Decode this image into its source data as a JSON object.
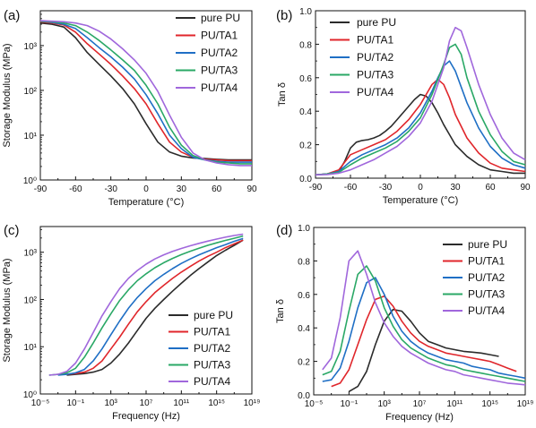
{
  "colors": {
    "pure PU": "#2b2b2b",
    "PU/TA1": "#e0262b",
    "PU/TA2": "#1f6fc5",
    "PU/TA3": "#2aa866",
    "PU/TA4": "#a067dc"
  },
  "chart_data": [
    {
      "panel_label": "(a)",
      "type": "line",
      "xlabel": "Temperature (°C)",
      "ylabel": "Storage Modulus (MPa)",
      "xlim": [
        -90,
        90
      ],
      "ylim": [
        1,
        6000
      ],
      "yscale": "log",
      "xticks": [
        -90,
        -60,
        -30,
        0,
        30,
        60,
        90
      ],
      "yticks": [
        1,
        10,
        100,
        1000
      ],
      "xtick_labels": [
        "-90",
        "-60",
        "-30",
        "0",
        "30",
        "60",
        "90"
      ],
      "ytick_labels": [
        "10⁰",
        "10¹",
        "10²",
        "10³"
      ],
      "legend": "top-right",
      "series": [
        {
          "name": "pure PU",
          "x": [
            -90,
            -80,
            -70,
            -60,
            -50,
            -40,
            -30,
            -20,
            -10,
            0,
            10,
            20,
            30,
            40,
            50,
            60,
            70,
            80,
            90
          ],
          "y": [
            3200,
            3000,
            2600,
            1500,
            700,
            380,
            210,
            110,
            50,
            18,
            7,
            4.2,
            3.4,
            3.1,
            3.0,
            2.9,
            2.8,
            2.8,
            2.8
          ]
        },
        {
          "name": "PU/TA1",
          "x": [
            -90,
            -80,
            -70,
            -60,
            -50,
            -40,
            -30,
            -20,
            -10,
            0,
            10,
            20,
            30,
            40,
            50,
            60,
            70,
            80,
            90
          ],
          "y": [
            3400,
            3200,
            2900,
            2000,
            1100,
            650,
            380,
            210,
            110,
            50,
            18,
            7,
            4.2,
            3.2,
            2.9,
            2.8,
            2.7,
            2.7,
            2.7
          ]
        },
        {
          "name": "PU/TA2",
          "x": [
            -90,
            -80,
            -70,
            -60,
            -50,
            -40,
            -30,
            -20,
            -10,
            0,
            10,
            20,
            30,
            40,
            50,
            60,
            70,
            80,
            90
          ],
          "y": [
            3500,
            3300,
            3000,
            2400,
            1500,
            900,
            560,
            330,
            180,
            80,
            30,
            10,
            5,
            3.2,
            2.8,
            2.6,
            2.5,
            2.5,
            2.5
          ]
        },
        {
          "name": "PU/TA3",
          "x": [
            -90,
            -80,
            -70,
            -60,
            -50,
            -40,
            -30,
            -20,
            -10,
            0,
            10,
            20,
            30,
            40,
            50,
            60,
            70,
            80,
            90
          ],
          "y": [
            3500,
            3400,
            3200,
            2800,
            2000,
            1300,
            800,
            480,
            280,
            130,
            50,
            15,
            6,
            3.5,
            2.8,
            2.5,
            2.4,
            2.3,
            2.3
          ]
        },
        {
          "name": "PU/TA4",
          "x": [
            -90,
            -80,
            -70,
            -60,
            -50,
            -40,
            -30,
            -20,
            -10,
            0,
            10,
            20,
            30,
            40,
            50,
            60,
            70,
            80,
            90
          ],
          "y": [
            3600,
            3500,
            3400,
            3200,
            2800,
            2100,
            1400,
            850,
            480,
            240,
            95,
            28,
            9,
            4,
            2.8,
            2.4,
            2.2,
            2.1,
            2.1
          ]
        }
      ]
    },
    {
      "panel_label": "(b)",
      "type": "line",
      "xlabel": "Temperature (°C)",
      "ylabel": "Tan δ",
      "xlim": [
        -90,
        90
      ],
      "ylim": [
        0,
        1.0
      ],
      "yscale": "linear",
      "xticks": [
        -90,
        -60,
        -30,
        0,
        30,
        60,
        90
      ],
      "yticks": [
        0,
        0.2,
        0.4,
        0.6,
        0.8,
        1.0
      ],
      "xtick_labels": [
        "-90",
        "-60",
        "-30",
        "0",
        "30",
        "60",
        "90"
      ],
      "ytick_labels": [
        "0.0",
        "0.2",
        "0.4",
        "0.6",
        "0.8",
        "1.0"
      ],
      "legend": "top-left",
      "series": [
        {
          "name": "pure PU",
          "x": [
            -90,
            -80,
            -70,
            -65,
            -60,
            -55,
            -50,
            -45,
            -40,
            -35,
            -30,
            -25,
            -20,
            -15,
            -10,
            -5,
            0,
            5,
            10,
            15,
            20,
            25,
            30,
            40,
            50,
            60,
            70,
            80,
            90
          ],
          "y": [
            0.02,
            0.025,
            0.04,
            0.1,
            0.18,
            0.215,
            0.225,
            0.23,
            0.24,
            0.255,
            0.28,
            0.31,
            0.35,
            0.39,
            0.43,
            0.47,
            0.5,
            0.49,
            0.45,
            0.39,
            0.32,
            0.26,
            0.2,
            0.13,
            0.08,
            0.05,
            0.04,
            0.03,
            0.03
          ]
        },
        {
          "name": "PU/TA1",
          "x": [
            -90,
            -80,
            -70,
            -60,
            -50,
            -40,
            -30,
            -20,
            -10,
            0,
            5,
            10,
            15,
            20,
            25,
            30,
            40,
            50,
            60,
            70,
            80,
            90
          ],
          "y": [
            0.02,
            0.025,
            0.05,
            0.14,
            0.17,
            0.2,
            0.23,
            0.28,
            0.35,
            0.44,
            0.5,
            0.56,
            0.59,
            0.56,
            0.48,
            0.38,
            0.24,
            0.15,
            0.09,
            0.06,
            0.05,
            0.04
          ]
        },
        {
          "name": "PU/TA2",
          "x": [
            -90,
            -80,
            -70,
            -60,
            -50,
            -40,
            -30,
            -20,
            -10,
            0,
            10,
            15,
            20,
            25,
            30,
            40,
            50,
            60,
            70,
            80,
            90
          ],
          "y": [
            0.02,
            0.025,
            0.04,
            0.1,
            0.14,
            0.17,
            0.2,
            0.24,
            0.3,
            0.39,
            0.52,
            0.6,
            0.67,
            0.7,
            0.64,
            0.45,
            0.3,
            0.19,
            0.12,
            0.08,
            0.06
          ]
        },
        {
          "name": "PU/TA3",
          "x": [
            -90,
            -80,
            -70,
            -60,
            -50,
            -40,
            -30,
            -20,
            -10,
            0,
            10,
            20,
            25,
            30,
            35,
            40,
            50,
            60,
            70,
            80,
            90
          ],
          "y": [
            0.02,
            0.025,
            0.035,
            0.08,
            0.12,
            0.15,
            0.18,
            0.22,
            0.28,
            0.36,
            0.5,
            0.68,
            0.78,
            0.8,
            0.74,
            0.6,
            0.4,
            0.26,
            0.16,
            0.1,
            0.08
          ]
        },
        {
          "name": "PU/TA4",
          "x": [
            -90,
            -80,
            -70,
            -60,
            -50,
            -40,
            -30,
            -20,
            -10,
            0,
            10,
            20,
            25,
            30,
            35,
            40,
            50,
            60,
            70,
            80,
            90
          ],
          "y": [
            0.02,
            0.022,
            0.03,
            0.05,
            0.08,
            0.11,
            0.15,
            0.19,
            0.25,
            0.33,
            0.46,
            0.66,
            0.82,
            0.9,
            0.88,
            0.78,
            0.56,
            0.38,
            0.24,
            0.15,
            0.11
          ]
        }
      ]
    },
    {
      "panel_label": "(c)",
      "type": "line",
      "xlabel": "Frequency (Hz)",
      "ylabel": "Storage Modulus (MPa)",
      "xlim": [
        -5,
        19
      ],
      "ylim": [
        1,
        3500
      ],
      "xscale": "log",
      "yscale": "log",
      "xticks": [
        -5,
        -1,
        3,
        7,
        11,
        15,
        19
      ],
      "yticks": [
        1,
        10,
        100,
        1000
      ],
      "xtick_labels": [
        "10⁻⁵",
        "10⁻¹",
        "10³",
        "10⁷",
        "10¹¹",
        "10¹⁵",
        "10¹⁹"
      ],
      "ytick_labels": [
        "10⁰",
        "10¹",
        "10²",
        "10³"
      ],
      "legend": "bottom-right",
      "series": [
        {
          "name": "pure PU",
          "x": [
            -2,
            -1,
            0,
            1,
            2,
            3,
            4,
            5,
            6,
            7,
            8,
            9,
            10,
            11,
            12,
            13,
            14,
            15,
            16,
            17,
            18
          ],
          "y": [
            2.5,
            2.6,
            2.7,
            2.9,
            3.3,
            4.5,
            7,
            12,
            22,
            40,
            65,
            100,
            150,
            220,
            320,
            450,
            620,
            850,
            1100,
            1400,
            1800
          ]
        },
        {
          "name": "PU/TA1",
          "x": [
            -2,
            -1,
            0,
            1,
            2,
            3,
            4,
            5,
            6,
            7,
            8,
            9,
            10,
            11,
            12,
            13,
            14,
            15,
            16,
            17,
            18
          ],
          "y": [
            2.6,
            2.7,
            2.9,
            3.5,
            5,
            9,
            16,
            30,
            55,
            90,
            140,
            200,
            280,
            380,
            500,
            650,
            820,
            1000,
            1250,
            1500,
            1800
          ]
        },
        {
          "name": "PU/TA2",
          "x": [
            -3,
            -2,
            -1,
            0,
            1,
            2,
            3,
            4,
            5,
            6,
            7,
            8,
            9,
            10,
            11,
            12,
            13,
            14,
            15,
            16,
            17,
            18
          ],
          "y": [
            2.5,
            2.6,
            2.8,
            3.3,
            5,
            9,
            18,
            35,
            65,
            110,
            170,
            250,
            340,
            450,
            580,
            720,
            880,
            1050,
            1250,
            1450,
            1700,
            1950
          ]
        },
        {
          "name": "PU/TA3",
          "x": [
            -4,
            -3,
            -2,
            -1,
            0,
            1,
            2,
            3,
            4,
            5,
            6,
            7,
            8,
            9,
            10,
            11,
            12,
            13,
            14,
            15,
            16,
            17,
            18
          ],
          "y": [
            2.5,
            2.6,
            2.8,
            3.5,
            6,
            12,
            25,
            50,
            95,
            160,
            250,
            350,
            470,
            600,
            740,
            890,
            1050,
            1220,
            1400,
            1580,
            1780,
            1980,
            2200
          ]
        },
        {
          "name": "PU/TA4",
          "x": [
            -4,
            -3,
            -2,
            -1,
            0,
            1,
            2,
            3,
            4,
            5,
            6,
            7,
            8,
            9,
            10,
            11,
            12,
            13,
            14,
            15,
            16,
            17,
            18
          ],
          "y": [
            2.5,
            2.6,
            3,
            4.5,
            9,
            20,
            45,
            90,
            170,
            280,
            410,
            560,
            720,
            880,
            1040,
            1200,
            1370,
            1540,
            1720,
            1900,
            2080,
            2260,
            2400
          ]
        }
      ]
    },
    {
      "panel_label": "(d)",
      "type": "line",
      "xlabel": "Frequency (Hz)",
      "ylabel": "Tan δ",
      "xlim": [
        -5,
        19
      ],
      "ylim": [
        0,
        1.0
      ],
      "xscale": "log",
      "yscale": "linear",
      "xticks": [
        -5,
        -1,
        3,
        7,
        11,
        15,
        19
      ],
      "yticks": [
        0,
        0.2,
        0.4,
        0.6,
        0.8,
        1.0
      ],
      "xtick_labels": [
        "10⁻⁵",
        "10⁻¹",
        "10³",
        "10⁷",
        "10¹¹",
        "10¹⁵",
        "10¹⁹"
      ],
      "ytick_labels": [
        "0.0",
        "0.2",
        "0.4",
        "0.6",
        "0.8",
        "1.0"
      ],
      "legend": "top-right",
      "series": [
        {
          "name": "pure PU",
          "x": [
            -1,
            0,
            1,
            2,
            3,
            4,
            5,
            6,
            7,
            8,
            9,
            10,
            11,
            12,
            13,
            14,
            15,
            16
          ],
          "y": [
            0.02,
            0.05,
            0.14,
            0.3,
            0.44,
            0.51,
            0.5,
            0.44,
            0.37,
            0.32,
            0.3,
            0.28,
            0.27,
            0.26,
            0.255,
            0.25,
            0.24,
            0.23
          ]
        },
        {
          "name": "PU/TA1",
          "x": [
            -3,
            -2,
            -1,
            0,
            1,
            2,
            3,
            4,
            5,
            6,
            7,
            8,
            9,
            10,
            11,
            12,
            13,
            14,
            15,
            16,
            17,
            18
          ],
          "y": [
            0.05,
            0.07,
            0.15,
            0.3,
            0.45,
            0.57,
            0.59,
            0.53,
            0.44,
            0.37,
            0.32,
            0.29,
            0.27,
            0.25,
            0.24,
            0.23,
            0.22,
            0.21,
            0.2,
            0.18,
            0.16,
            0.14
          ]
        },
        {
          "name": "PU/TA2",
          "x": [
            -4,
            -3,
            -2,
            -1,
            0,
            1,
            2,
            3,
            4,
            5,
            6,
            7,
            8,
            9,
            10,
            11,
            12,
            13,
            14,
            15,
            16,
            17,
            18,
            19
          ],
          "y": [
            0.08,
            0.09,
            0.16,
            0.32,
            0.52,
            0.67,
            0.7,
            0.6,
            0.47,
            0.38,
            0.32,
            0.28,
            0.25,
            0.23,
            0.21,
            0.2,
            0.19,
            0.17,
            0.16,
            0.15,
            0.13,
            0.12,
            0.11,
            0.1
          ]
        },
        {
          "name": "PU/TA3",
          "x": [
            -4,
            -3,
            -2,
            -1,
            0,
            1,
            2,
            3,
            4,
            5,
            6,
            7,
            8,
            9,
            10,
            11,
            12,
            13,
            14,
            15,
            16,
            17,
            18,
            19
          ],
          "y": [
            0.12,
            0.14,
            0.26,
            0.5,
            0.72,
            0.77,
            0.68,
            0.52,
            0.41,
            0.33,
            0.28,
            0.25,
            0.22,
            0.2,
            0.18,
            0.17,
            0.15,
            0.14,
            0.13,
            0.12,
            0.11,
            0.1,
            0.09,
            0.08
          ]
        },
        {
          "name": "PU/TA4",
          "x": [
            -4,
            -3,
            -2,
            -1,
            0,
            1,
            2,
            3,
            4,
            5,
            6,
            7,
            8,
            9,
            10,
            11,
            12,
            13,
            14,
            15,
            16,
            17,
            18,
            19
          ],
          "y": [
            0.15,
            0.22,
            0.46,
            0.8,
            0.86,
            0.72,
            0.55,
            0.43,
            0.35,
            0.29,
            0.25,
            0.22,
            0.19,
            0.17,
            0.15,
            0.14,
            0.12,
            0.11,
            0.1,
            0.09,
            0.08,
            0.07,
            0.065,
            0.06
          ]
        }
      ]
    }
  ]
}
